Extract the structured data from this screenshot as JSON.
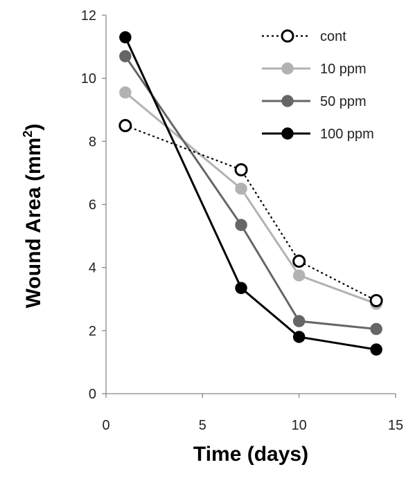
{
  "chart_data": {
    "type": "line",
    "xlabel": "Time (days)",
    "ylabel": "Wound Area (mm",
    "ylabel_sup": "2",
    "ylabel_close": ")",
    "xlim": [
      0,
      15
    ],
    "ylim": [
      0,
      12
    ],
    "xticks": [
      "0",
      "5",
      "10",
      "15"
    ],
    "yticks": [
      "0",
      "2",
      "4",
      "6",
      "8",
      "10",
      "12"
    ],
    "grid": false,
    "legend_position": "top-right",
    "x": [
      1,
      7,
      10,
      14
    ],
    "series": [
      {
        "name": "cont",
        "values": [
          8.5,
          7.1,
          4.2,
          2.95
        ],
        "color": "#000000",
        "marker_fill": "#ffffff",
        "dashed": true
      },
      {
        "name": "10 ppm",
        "values": [
          9.55,
          6.5,
          3.75,
          2.85
        ],
        "color": "#b2b2b2",
        "marker_fill": "#b2b2b2",
        "dashed": false
      },
      {
        "name": "50 ppm",
        "values": [
          10.7,
          5.35,
          2.3,
          2.05
        ],
        "color": "#666666",
        "marker_fill": "#666666",
        "dashed": false
      },
      {
        "name": "100 ppm",
        "values": [
          11.3,
          3.35,
          1.8,
          1.4
        ],
        "color": "#000000",
        "marker_fill": "#000000",
        "dashed": false
      }
    ]
  }
}
